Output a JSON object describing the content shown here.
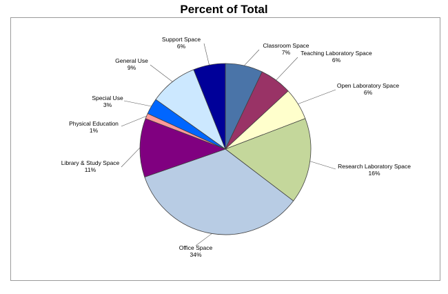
{
  "chart_data": {
    "type": "pie",
    "title": "Percent of Total",
    "slices": [
      {
        "label": "Classroom Space",
        "pct_label": "7%",
        "value": 7,
        "color": "#4a74a8"
      },
      {
        "label": "Teaching Laboratory Space",
        "pct_label": "6%",
        "value": 6,
        "color": "#993366"
      },
      {
        "label": "Open Laboratory Space",
        "pct_label": "6%",
        "value": 6,
        "color": "#ffffcc"
      },
      {
        "label": "Research Laboratory Space",
        "pct_label": "16%",
        "value": 16,
        "color": "#c4d79b"
      },
      {
        "label": "Office Space",
        "pct_label": "34%",
        "value": 34,
        "color": "#b8cce4"
      },
      {
        "label": "Library & Study Space",
        "pct_label": "11%",
        "value": 11,
        "color": "#800080"
      },
      {
        "label": "Physical Education",
        "pct_label": "1%",
        "value": 1,
        "color": "#ff9999"
      },
      {
        "label": "Special Use",
        "pct_label": "3%",
        "value": 3,
        "color": "#0066ff"
      },
      {
        "label": "General Use",
        "pct_label": "9%",
        "value": 9,
        "color": "#cce8ff"
      },
      {
        "label": "Support Space",
        "pct_label": "6%",
        "value": 6,
        "color": "#000099"
      }
    ]
  }
}
